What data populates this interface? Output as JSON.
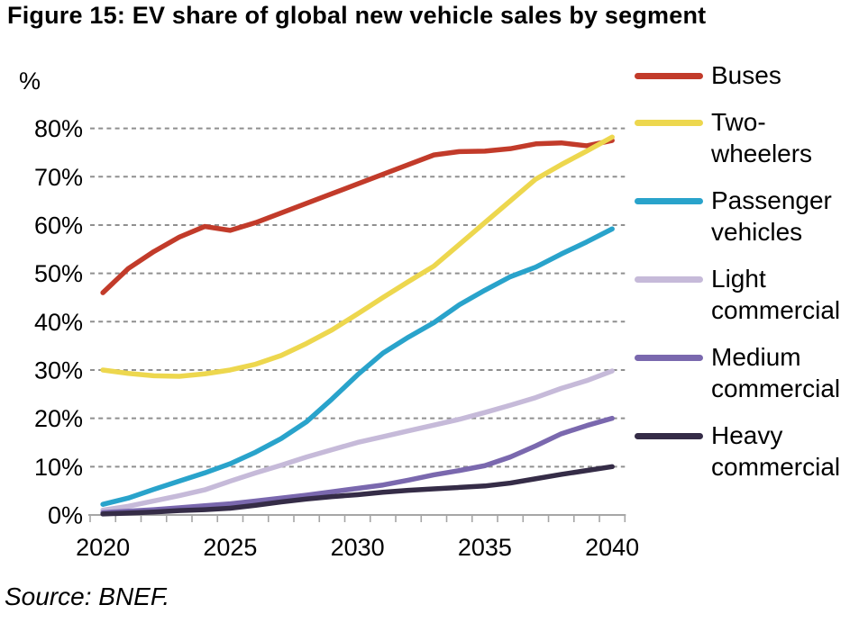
{
  "title": "Figure 15: EV share of global new vehicle sales by segment",
  "source": "Source: BNEF.",
  "axis": {
    "y_unit_label": "%",
    "y_tick_labels": [
      "0%",
      "10%",
      "20%",
      "30%",
      "40%",
      "50%",
      "60%",
      "70%",
      "80%"
    ],
    "x_tick_labels": [
      "2020",
      "2025",
      "2030",
      "2035",
      "2040"
    ]
  },
  "colors": {
    "grid": "#8f8f8f",
    "axis": "#a6a6a6",
    "text": "#000000"
  },
  "chart_data": {
    "type": "line",
    "title": "Figure 15: EV share of global new vehicle sales by segment",
    "xlabel": "",
    "ylabel": "%",
    "ylim": [
      0,
      80
    ],
    "ytick_step": 10,
    "grid": "horizontal-dashed",
    "legend_position": "right",
    "x": [
      2020,
      2021,
      2022,
      2023,
      2024,
      2025,
      2026,
      2027,
      2028,
      2029,
      2030,
      2031,
      2032,
      2033,
      2034,
      2035,
      2036,
      2037,
      2038,
      2039,
      2040
    ],
    "x_labeled_years": [
      2020,
      2025,
      2030,
      2035,
      2040
    ],
    "series": [
      {
        "name": "Buses",
        "label_lines": [
          "Buses"
        ],
        "color": "#c23b2a",
        "values": [
          46,
          51,
          54.5,
          57.5,
          59.7,
          58.9,
          60.5,
          62.5,
          64.5,
          66.5,
          68.5,
          70.5,
          72.5,
          74.5,
          75.2,
          75.3,
          75.8,
          76.8,
          77,
          76.4,
          77.5
        ]
      },
      {
        "name": "Two-wheelers",
        "label_lines": [
          "Two-",
          "wheelers"
        ],
        "color": "#edd74e",
        "values": [
          30,
          29.3,
          28.8,
          28.7,
          29.2,
          30,
          31.2,
          33,
          35.5,
          38.3,
          41.6,
          45,
          48.3,
          51.5,
          56,
          60.5,
          65,
          69.5,
          72.5,
          75.3,
          78.2
        ]
      },
      {
        "name": "Passenger vehicles",
        "label_lines": [
          "Passenger",
          "vehicles"
        ],
        "color": "#29a3cb",
        "values": [
          2.2,
          3.5,
          5.3,
          7,
          8.7,
          10.6,
          13,
          15.8,
          19.3,
          24,
          29,
          33.5,
          36.8,
          39.8,
          43.5,
          46.5,
          49.3,
          51.3,
          54,
          56.5,
          59.2
        ]
      },
      {
        "name": "Light commercial",
        "label_lines": [
          "Light",
          "commercial"
        ],
        "color": "#c6bad9",
        "values": [
          1,
          1.8,
          2.9,
          4,
          5.2,
          7,
          8.7,
          10.3,
          12,
          13.5,
          15,
          16.2,
          17.4,
          18.6,
          19.8,
          21.2,
          22.7,
          24.3,
          26.2,
          27.8,
          29.8
        ]
      },
      {
        "name": "Medium commercial",
        "label_lines": [
          "Medium",
          "commercial"
        ],
        "color": "#7a68ae",
        "values": [
          0.5,
          0.8,
          1.1,
          1.5,
          1.9,
          2.3,
          2.9,
          3.5,
          4.1,
          4.8,
          5.5,
          6.2,
          7.2,
          8.3,
          9.2,
          10.2,
          12,
          14.3,
          16.8,
          18.5,
          20
        ]
      },
      {
        "name": "Heavy commercial",
        "label_lines": [
          "Heavy",
          "commercial"
        ],
        "color": "#352c47",
        "values": [
          0.2,
          0.4,
          0.6,
          0.9,
          1.1,
          1.4,
          2,
          2.7,
          3.3,
          3.8,
          4.2,
          4.7,
          5.1,
          5.4,
          5.7,
          6,
          6.6,
          7.5,
          8.4,
          9.2,
          10
        ]
      }
    ]
  }
}
